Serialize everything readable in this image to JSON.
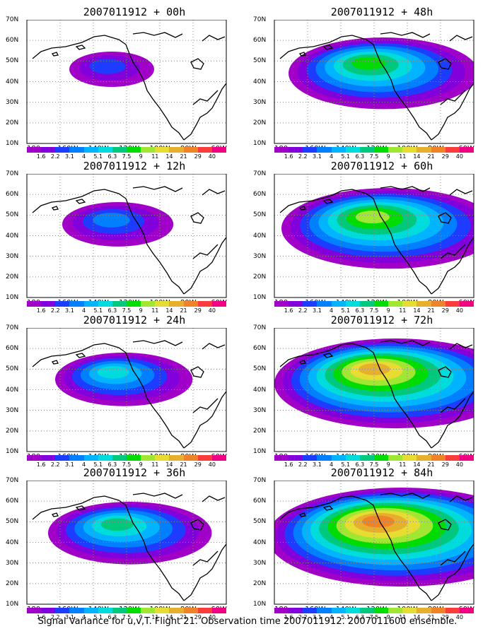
{
  "panels": [
    {
      "title": "2007011912 + 00h",
      "lead_hours": 0
    },
    {
      "title": "2007011912 + 48h",
      "lead_hours": 48
    },
    {
      "title": "2007011912 + 12h",
      "lead_hours": 12
    },
    {
      "title": "2007011912 + 60h",
      "lead_hours": 60
    },
    {
      "title": "2007011912 + 24h",
      "lead_hours": 24
    },
    {
      "title": "2007011912 + 72h",
      "lead_hours": 72
    },
    {
      "title": "2007011912 + 36h",
      "lead_hours": 36
    },
    {
      "title": "2007011912 + 84h",
      "lead_hours": 84
    }
  ],
  "axes": {
    "lat_labels": [
      "70N",
      "60N",
      "50N",
      "40N",
      "30N",
      "20N",
      "10N"
    ],
    "lon_labels": [
      "180",
      "160W",
      "140W",
      "120W",
      "100W",
      "80W",
      "60W"
    ]
  },
  "colorbar": {
    "levels": [
      "1.6",
      "2.2",
      "3.1",
      "4",
      "5.1",
      "6.3",
      "7.5",
      "9",
      "11",
      "14",
      "21",
      "29",
      "40"
    ],
    "colors": [
      "#a000c8",
      "#8200dc",
      "#1e3cff",
      "#0080ff",
      "#00b4ff",
      "#00dcdc",
      "#00c87c",
      "#00dc00",
      "#a0e632",
      "#e6dc32",
      "#e6af2d",
      "#f08228",
      "#fa3c3c",
      "#f00082"
    ]
  },
  "caption": "Signal Variance for u,v,T. Flight 21. Observation time 2007011912. 2007011600 ensemble."
}
